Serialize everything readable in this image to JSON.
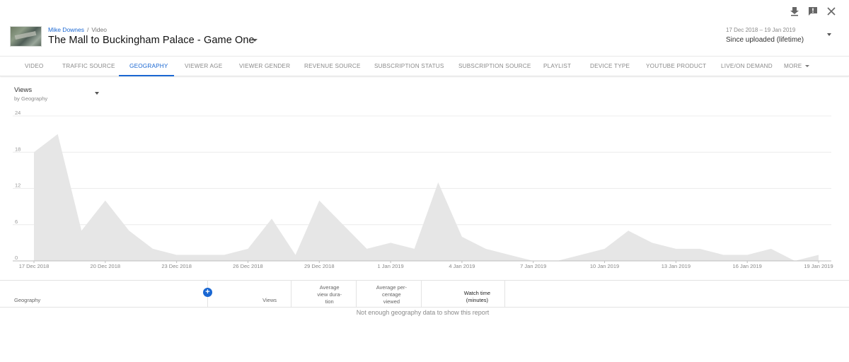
{
  "header": {
    "breadcrumb_channel": "Mike Downes",
    "breadcrumb_separator": "/",
    "breadcrumb_section": "Video",
    "title": "The Mall to Buckingham Palace - Game One",
    "date_range": "17 Dec 2018 – 19 Jan 2019",
    "date_label": "Since uploaded (lifetime)",
    "icons": [
      "download-icon",
      "feedback-icon",
      "close-icon"
    ]
  },
  "tabs": [
    {
      "label": "Video"
    },
    {
      "label": "Traffic source"
    },
    {
      "label": "Geography",
      "active": true
    },
    {
      "label": "Viewer age"
    },
    {
      "label": "Viewer gender"
    },
    {
      "label": "Revenue source"
    },
    {
      "label": "Subscription status"
    },
    {
      "label": "Subscription source"
    },
    {
      "label": "Playlist"
    },
    {
      "label": "Device type"
    },
    {
      "label": "YouTube product"
    },
    {
      "label": "Live/On demand"
    },
    {
      "label": "More"
    }
  ],
  "metric": {
    "label": "Views",
    "sublabel": "by Geography"
  },
  "chart_data": {
    "type": "area",
    "ylim": [
      0,
      24
    ],
    "yticks": [
      0,
      6,
      12,
      18,
      24
    ],
    "x": [
      "17 Dec 2018",
      "18 Dec 2018",
      "19 Dec 2018",
      "20 Dec 2018",
      "21 Dec 2018",
      "22 Dec 2018",
      "23 Dec 2018",
      "24 Dec 2018",
      "25 Dec 2018",
      "26 Dec 2018",
      "27 Dec 2018",
      "28 Dec 2018",
      "29 Dec 2018",
      "30 Dec 2018",
      "31 Dec 2018",
      "1 Jan 2019",
      "2 Jan 2019",
      "3 Jan 2019",
      "4 Jan 2019",
      "5 Jan 2019",
      "6 Jan 2019",
      "7 Jan 2019",
      "8 Jan 2019",
      "9 Jan 2019",
      "10 Jan 2019",
      "11 Jan 2019",
      "12 Jan 2019",
      "13 Jan 2019",
      "14 Jan 2019",
      "15 Jan 2019",
      "16 Jan 2019",
      "17 Jan 2019",
      "18 Jan 2019",
      "19 Jan 2019"
    ],
    "values": [
      18,
      21,
      5,
      10,
      5,
      2,
      1,
      1,
      1,
      2,
      7,
      1,
      10,
      6,
      2,
      3,
      2,
      13,
      4,
      2,
      1,
      0,
      0,
      1,
      2,
      5,
      3,
      2,
      2,
      1,
      1,
      2,
      0,
      1
    ],
    "xtick_labels": [
      "17 Dec 2018",
      "20 Dec 2018",
      "23 Dec 2018",
      "26 Dec 2018",
      "29 Dec 2018",
      "1 Jan 2019",
      "4 Jan 2019",
      "7 Jan 2019",
      "10 Jan 2019",
      "13 Jan 2019",
      "16 Jan 2019",
      "19 Jan 2019"
    ],
    "grid": true,
    "fill_color": "#e6e6e6"
  },
  "table": {
    "columns": {
      "geography": "Geography",
      "views": "Views",
      "avg_duration_1": "Average",
      "avg_duration_2": "view dura-",
      "avg_duration_3": "tion",
      "avg_pct_1": "Average per-",
      "avg_pct_2": "centage",
      "avg_pct_3": "viewed",
      "watch_1": "Watch time",
      "watch_2": "(minutes)"
    },
    "add_symbol": "+",
    "empty_message": "Not enough geography data to show this report"
  }
}
